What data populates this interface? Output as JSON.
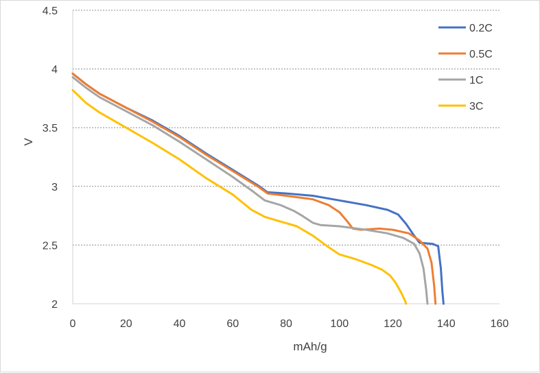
{
  "chart_data": {
    "type": "line",
    "title": "",
    "xlabel": "mAh/g",
    "ylabel": "V",
    "xlim": [
      0,
      160
    ],
    "ylim": [
      2,
      4.5
    ],
    "xticks": [
      "0",
      "20",
      "40",
      "60",
      "80",
      "100",
      "120",
      "140",
      "160"
    ],
    "yticks": [
      "2",
      "2.5",
      "3",
      "3.5",
      "4",
      "4.5"
    ],
    "grid": "horizontal",
    "legend_position": "top-right",
    "series": [
      {
        "name": "0.2C",
        "color": "#4472c4",
        "points": [
          [
            0,
            3.96
          ],
          [
            5,
            3.87
          ],
          [
            10,
            3.79
          ],
          [
            20,
            3.67
          ],
          [
            30,
            3.56
          ],
          [
            40,
            3.43
          ],
          [
            50,
            3.28
          ],
          [
            60,
            3.14
          ],
          [
            70,
            3.0
          ],
          [
            73,
            2.95
          ],
          [
            80,
            2.94
          ],
          [
            90,
            2.92
          ],
          [
            100,
            2.88
          ],
          [
            110,
            2.84
          ],
          [
            118,
            2.8
          ],
          [
            122,
            2.76
          ],
          [
            125,
            2.68
          ],
          [
            128,
            2.58
          ],
          [
            130,
            2.52
          ],
          [
            135,
            2.51
          ],
          [
            137,
            2.49
          ],
          [
            138,
            2.3
          ],
          [
            138.6,
            2.1
          ],
          [
            139,
            2.0
          ]
        ]
      },
      {
        "name": "0.5C",
        "color": "#ed7d31",
        "points": [
          [
            0,
            3.96
          ],
          [
            5,
            3.87
          ],
          [
            10,
            3.79
          ],
          [
            20,
            3.67
          ],
          [
            30,
            3.55
          ],
          [
            40,
            3.42
          ],
          [
            50,
            3.27
          ],
          [
            60,
            3.13
          ],
          [
            70,
            2.99
          ],
          [
            73,
            2.94
          ],
          [
            80,
            2.92
          ],
          [
            90,
            2.89
          ],
          [
            96,
            2.84
          ],
          [
            100,
            2.78
          ],
          [
            103,
            2.7
          ],
          [
            105,
            2.64
          ],
          [
            108,
            2.63
          ],
          [
            115,
            2.64
          ],
          [
            120,
            2.63
          ],
          [
            126,
            2.6
          ],
          [
            130,
            2.54
          ],
          [
            133,
            2.47
          ],
          [
            134.5,
            2.35
          ],
          [
            135.5,
            2.15
          ],
          [
            136,
            2.0
          ]
        ]
      },
      {
        "name": "1C",
        "color": "#a5a5a5",
        "points": [
          [
            0,
            3.93
          ],
          [
            5,
            3.84
          ],
          [
            10,
            3.76
          ],
          [
            20,
            3.64
          ],
          [
            30,
            3.52
          ],
          [
            40,
            3.38
          ],
          [
            50,
            3.23
          ],
          [
            60,
            3.08
          ],
          [
            68,
            2.95
          ],
          [
            72,
            2.88
          ],
          [
            78,
            2.84
          ],
          [
            83,
            2.79
          ],
          [
            86,
            2.75
          ],
          [
            90,
            2.69
          ],
          [
            93,
            2.67
          ],
          [
            100,
            2.66
          ],
          [
            110,
            2.63
          ],
          [
            118,
            2.6
          ],
          [
            124,
            2.56
          ],
          [
            128,
            2.51
          ],
          [
            130,
            2.43
          ],
          [
            131.5,
            2.3
          ],
          [
            132.5,
            2.12
          ],
          [
            133,
            2.0
          ]
        ]
      },
      {
        "name": "3C",
        "color": "#ffc000",
        "points": [
          [
            0,
            3.82
          ],
          [
            5,
            3.71
          ],
          [
            10,
            3.63
          ],
          [
            20,
            3.5
          ],
          [
            30,
            3.37
          ],
          [
            40,
            3.23
          ],
          [
            50,
            3.07
          ],
          [
            60,
            2.93
          ],
          [
            67,
            2.8
          ],
          [
            72,
            2.74
          ],
          [
            78,
            2.7
          ],
          [
            84,
            2.66
          ],
          [
            90,
            2.58
          ],
          [
            96,
            2.48
          ],
          [
            100,
            2.42
          ],
          [
            106,
            2.38
          ],
          [
            112,
            2.33
          ],
          [
            116,
            2.29
          ],
          [
            119,
            2.24
          ],
          [
            121,
            2.18
          ],
          [
            123,
            2.1
          ],
          [
            124.5,
            2.03
          ],
          [
            125,
            2.0
          ]
        ]
      }
    ]
  }
}
